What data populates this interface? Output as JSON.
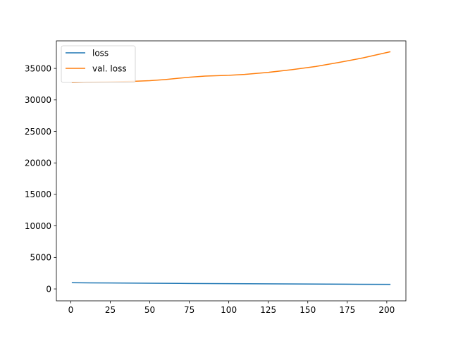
{
  "chart_data": {
    "type": "line",
    "title": "",
    "xlabel": "",
    "ylabel": "",
    "xlim": [
      -9.1,
      212.1
    ],
    "ylim": [
      -1893,
      39371
    ],
    "xticks": [
      0,
      25,
      50,
      75,
      100,
      125,
      150,
      175,
      200
    ],
    "yticks": [
      0,
      5000,
      10000,
      15000,
      20000,
      25000,
      30000,
      35000
    ],
    "grid": false,
    "legend_position": "upper-left",
    "series": [
      {
        "name": "loss",
        "color": "#1f77b4",
        "x": [
          1,
          25,
          50,
          75,
          100,
          125,
          150,
          175,
          202
        ],
        "y": [
          983,
          940,
          900,
          860,
          835,
          810,
          780,
          745,
          720
        ]
      },
      {
        "name": "val. loss",
        "color": "#ff7f0e",
        "x": [
          1,
          10,
          25,
          40,
          50,
          60,
          75,
          85,
          100,
          110,
          125,
          140,
          155,
          170,
          185,
          202
        ],
        "y": [
          32750,
          32810,
          32860,
          32950,
          33050,
          33240,
          33600,
          33780,
          33900,
          34050,
          34370,
          34800,
          35300,
          35960,
          36670,
          37630
        ]
      }
    ]
  }
}
